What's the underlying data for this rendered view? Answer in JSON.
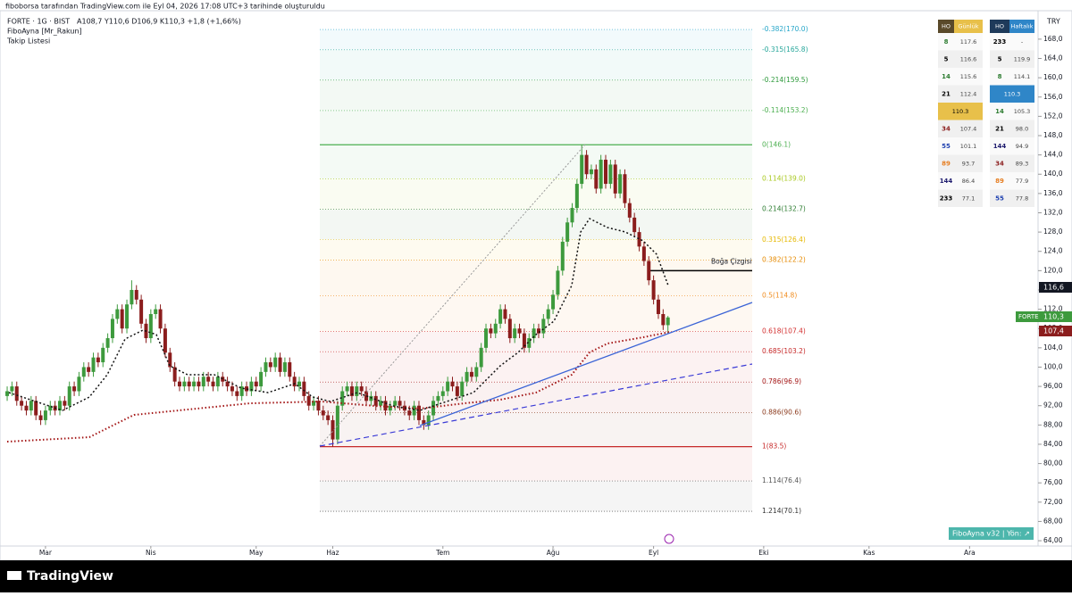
{
  "header": {
    "top": "fiboborsa tarafından TradingView.com ile Eyl 04, 2026 17:08 UTC+3 tarihinde oluşturuldu",
    "symbol": "FORTE · 1G · BIST",
    "ohlc": "A108,7 Y110,6 D106,9 K110,3 +1,8 (+1,66%)",
    "indicator": "FiboAyna [Mr_Rakun]",
    "watchlist": "Takip Listesi",
    "currency": "TRY",
    "logo": "TradingView",
    "badge": "FiboAyna v32 | Yön: ↗"
  },
  "tags": {
    "black": "116,6",
    "symbol": "FORTE",
    "green": "110,3",
    "red": "107,4"
  },
  "table": {
    "headers": [
      "HO",
      "Günlük",
      "HO",
      "Haftalık"
    ],
    "left": [
      {
        "ho": "8",
        "value": "117.6",
        "color": "#2e7d32"
      },
      {
        "ho": "5",
        "value": "116.6",
        "color": "#000000"
      },
      {
        "ho": "14",
        "value": "115.6",
        "color": "#2e7d32"
      },
      {
        "ho": "21",
        "value": "112.4",
        "color": "#000000"
      },
      {
        "value": "110.3",
        "color": "#e8c04a"
      },
      {
        "ho": "34",
        "value": "107.4",
        "color": "#8b1d1d"
      },
      {
        "ho": "55",
        "value": "101.1",
        "color": "#1e40af"
      },
      {
        "ho": "89",
        "value": "93.7",
        "color": "#e67e22"
      },
      {
        "ho": "144",
        "value": "86.4",
        "color": "#1e1b6e"
      },
      {
        "ho": "233",
        "value": "77.1",
        "color": "#000000"
      }
    ],
    "right": [
      {
        "ho": "233",
        "value": "-",
        "color": "#000000"
      },
      {
        "ho": "5",
        "value": "119.9",
        "color": "#000000"
      },
      {
        "ho": "8",
        "value": "114.1",
        "color": "#2e7d32"
      },
      {
        "value": "110.3",
        "color": "#2f86c8"
      },
      {
        "ho": "14",
        "value": "105.3",
        "color": "#2e7d32"
      },
      {
        "ho": "21",
        "value": "98.0",
        "color": "#000000"
      },
      {
        "ho": "144",
        "value": "94.9",
        "color": "#1e1b6e"
      },
      {
        "ho": "34",
        "value": "89.3",
        "color": "#8b1d1d"
      },
      {
        "ho": "89",
        "value": "77.9",
        "color": "#e67e22"
      },
      {
        "ho": "55",
        "value": "77.8",
        "color": "#1e40af"
      }
    ]
  },
  "chart_data": {
    "type": "candlestick",
    "up_color": "#3d9a3d",
    "down_color": "#8b1d1d",
    "ylim": [
      62.9,
      173.9
    ],
    "xlim": [
      -1.5,
      215.3
    ],
    "yticks": [
      {
        "value": 168,
        "label": "168,0"
      },
      {
        "value": 164,
        "label": "164,0"
      },
      {
        "value": 160,
        "label": "160,0"
      },
      {
        "value": 156,
        "label": "156,0"
      },
      {
        "value": 152,
        "label": "152,0"
      },
      {
        "value": 148,
        "label": "148,0"
      },
      {
        "value": 144,
        "label": "144,0"
      },
      {
        "value": 140,
        "label": "140,0"
      },
      {
        "value": 136,
        "label": "136,0"
      },
      {
        "value": 132,
        "label": "132,0"
      },
      {
        "value": 128,
        "label": "128,0"
      },
      {
        "value": 124,
        "label": "124,0"
      },
      {
        "value": 120,
        "label": "120,0"
      },
      {
        "value": 116,
        "label": "116,0"
      },
      {
        "value": 112,
        "label": "112,0"
      },
      {
        "value": 108,
        "label": "108,0"
      },
      {
        "value": 104,
        "label": "104,0"
      },
      {
        "value": 100,
        "label": "100,0"
      },
      {
        "value": 96,
        "label": "96,00"
      },
      {
        "value": 92,
        "label": "92,00"
      },
      {
        "value": 88,
        "label": "88,00"
      },
      {
        "value": 84,
        "label": "84,00"
      },
      {
        "value": 80,
        "label": "80,00"
      },
      {
        "value": 76,
        "label": "76,00"
      },
      {
        "value": 72,
        "label": "72,00"
      },
      {
        "value": 68,
        "label": "68,00"
      },
      {
        "value": 64,
        "label": "64,00"
      }
    ],
    "xticks": [
      {
        "value": 8,
        "label": "Mar"
      },
      {
        "value": 30,
        "label": "Nis"
      },
      {
        "value": 52,
        "label": "May"
      },
      {
        "value": 68,
        "label": "Haz"
      },
      {
        "value": 91,
        "label": "Tem"
      },
      {
        "value": 114,
        "label": "Ağu"
      },
      {
        "value": 135,
        "label": "Eyl"
      },
      {
        "value": 158,
        "label": "Eki"
      },
      {
        "value": 180,
        "label": "Kas"
      },
      {
        "value": 201,
        "label": "Ara"
      }
    ],
    "open": [
      94,
      95,
      96,
      93,
      92,
      91,
      93,
      90,
      89,
      91,
      92,
      91,
      93,
      92,
      96,
      95,
      98,
      100,
      99,
      102,
      101,
      104,
      106,
      110,
      112,
      108,
      113,
      116,
      114,
      109,
      106,
      111,
      112,
      108,
      103,
      100,
      97,
      96,
      97,
      96,
      97,
      96,
      98,
      97,
      96,
      98,
      97,
      96,
      95,
      94,
      96,
      95,
      97,
      96,
      99,
      101,
      100,
      102,
      99,
      101,
      98,
      96,
      97,
      94,
      92,
      93,
      91,
      90,
      89,
      85,
      92,
      95,
      96,
      94,
      96,
      95,
      93,
      94,
      92,
      93,
      91,
      92,
      93,
      92,
      91,
      90,
      92,
      89,
      88,
      90,
      93,
      94,
      95,
      97,
      96,
      94,
      97,
      99,
      98,
      100,
      104,
      108,
      107,
      109,
      112,
      110,
      106,
      108,
      107,
      104,
      106,
      108,
      107,
      110,
      112,
      115,
      120,
      126,
      130,
      133,
      138,
      144,
      140,
      141,
      137,
      143,
      138,
      142,
      136,
      140,
      134,
      131,
      128,
      125,
      122,
      118,
      114,
      111,
      108.7
    ],
    "high": [
      96,
      97,
      97,
      94,
      93,
      94,
      94,
      91,
      92,
      93,
      93,
      94,
      94,
      97,
      97,
      99,
      101,
      101,
      103,
      103,
      105,
      107,
      111,
      113,
      113,
      114,
      118,
      117,
      115,
      110,
      112,
      113,
      113,
      109,
      104,
      101,
      98,
      98,
      98,
      98,
      98,
      99,
      99,
      98,
      99,
      99,
      98,
      97,
      96,
      97,
      97,
      98,
      98,
      100,
      102,
      102,
      103,
      103,
      102,
      102,
      99,
      98,
      98,
      95,
      94,
      94,
      92,
      91,
      90,
      93,
      96,
      97,
      97,
      97,
      97,
      96,
      95,
      95,
      94,
      94,
      93,
      94,
      94,
      93,
      92,
      93,
      93,
      90,
      91,
      94,
      95,
      96,
      98,
      98,
      97,
      98,
      100,
      100,
      101,
      105,
      109,
      109,
      110,
      113,
      113,
      111,
      109,
      109,
      108,
      107,
      109,
      109,
      111,
      113,
      116,
      121,
      127,
      131,
      134,
      139,
      146.1,
      145,
      142,
      142,
      144,
      144,
      143,
      143,
      141,
      141,
      135,
      132,
      129,
      126,
      123,
      119,
      115,
      112,
      110.6
    ],
    "low": [
      93,
      94,
      92,
      91,
      90,
      90,
      89,
      88,
      88,
      90,
      90,
      90,
      91,
      91,
      94,
      94,
      97,
      98,
      98,
      100,
      100,
      103,
      105,
      109,
      107,
      107,
      112,
      113,
      108,
      105,
      105,
      110,
      107,
      102,
      99,
      96,
      95,
      95,
      95,
      95,
      95,
      95,
      96,
      95,
      95,
      96,
      95,
      94,
      93,
      93,
      94,
      94,
      95,
      95,
      98,
      99,
      99,
      98,
      98,
      97,
      95,
      95,
      93,
      91,
      91,
      90,
      89,
      88,
      83.5,
      84,
      91,
      94,
      93,
      93,
      94,
      92,
      92,
      91,
      91,
      90,
      90,
      91,
      91,
      90,
      89,
      89,
      88,
      87,
      87,
      89,
      92,
      93,
      94,
      95,
      93,
      93,
      96,
      97,
      97,
      99,
      103,
      106,
      106,
      108,
      109,
      105,
      105,
      106,
      103,
      103,
      105,
      106,
      106,
      109,
      111,
      114,
      119,
      125,
      129,
      132,
      137,
      139,
      139,
      136,
      136,
      137,
      137,
      135,
      135,
      133,
      130,
      127,
      124,
      121,
      117,
      113,
      110,
      107.7,
      106.9
    ],
    "close": [
      95,
      96,
      93,
      92,
      91,
      93,
      90,
      89,
      91,
      92,
      91,
      93,
      92,
      96,
      95,
      98,
      100,
      99,
      102,
      101,
      104,
      106,
      110,
      112,
      108,
      113,
      116,
      114,
      109,
      106,
      111,
      112,
      108,
      103,
      100,
      97,
      96,
      97,
      96,
      97,
      96,
      98,
      97,
      96,
      98,
      97,
      96,
      95,
      94,
      96,
      95,
      97,
      96,
      99,
      101,
      100,
      102,
      99,
      101,
      98,
      96,
      97,
      94,
      92,
      93,
      91,
      90,
      89,
      85,
      92,
      95,
      96,
      94,
      96,
      95,
      93,
      94,
      92,
      93,
      91,
      92,
      93,
      92,
      91,
      90,
      92,
      89,
      88,
      90,
      93,
      94,
      95,
      97,
      96,
      94,
      97,
      99,
      98,
      100,
      104,
      108,
      107,
      109,
      112,
      110,
      106,
      108,
      107,
      104,
      106,
      108,
      107,
      110,
      112,
      115,
      120,
      126,
      130,
      133,
      138,
      144,
      140,
      141,
      137,
      143,
      138,
      142,
      136,
      140,
      134,
      131,
      128,
      125,
      122,
      118,
      114,
      111,
      108.7,
      110.3
    ],
    "fib": [
      {
        "label": "-0.382(170.0)",
        "value": 170.0,
        "color": "#26a6c9"
      },
      {
        "label": "-0.315(165.8)",
        "value": 165.8,
        "color": "#26a69a"
      },
      {
        "label": "-0.214(159.5)",
        "value": 159.5,
        "color": "#2e9a3c"
      },
      {
        "label": "-0.114(153.2)",
        "value": 153.2,
        "color": "#4caf50"
      },
      {
        "label": "0(146.1)",
        "value": 146.1,
        "color": "#4caf50"
      },
      {
        "label": "0.114(139.0)",
        "value": 139.0,
        "color": "#a8c81e"
      },
      {
        "label": "0.214(132.7)",
        "value": 132.7,
        "color": "#2e7d32"
      },
      {
        "label": "0.315(126.4)",
        "value": 126.4,
        "color": "#e6b800"
      },
      {
        "label": "0.382(122.2)",
        "value": 122.2,
        "color": "#e68a00"
      },
      {
        "label": "0.5(114.8)",
        "value": 114.8,
        "color": "#f08c1e"
      },
      {
        "label": "0.618(107.4)",
        "value": 107.4,
        "color": "#d32f2f"
      },
      {
        "label": "0.685(103.2)",
        "value": 103.2,
        "color": "#c62828"
      },
      {
        "label": "0.786(96.9)",
        "value": 96.9,
        "color": "#a31515"
      },
      {
        "label": "0.886(90.6)",
        "value": 90.6,
        "color": "#8b3a1d"
      },
      {
        "label": "1(83.5)",
        "value": 83.5,
        "color": "#c62828"
      },
      {
        "label": "1.114(76.4)",
        "value": 76.4,
        "color": "#555555"
      },
      {
        "label": "1.214(70.1)",
        "value": 70.1,
        "color": "#333333"
      }
    ],
    "bull_line": {
      "label": "Boğa Çizgisi",
      "value": 120
    }
  }
}
